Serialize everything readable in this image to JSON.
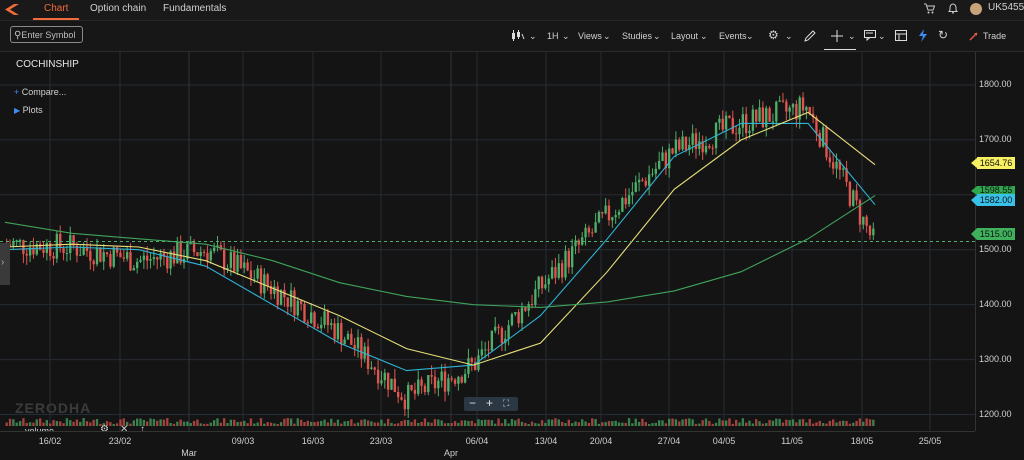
{
  "topbar": {
    "tabs": [
      {
        "label": "Chart"
      },
      {
        "label": "Option chain"
      },
      {
        "label": "Fundamentals"
      }
    ],
    "user_id": "UK5455"
  },
  "toolbar": {
    "search_placeholder": "Enter Symbol",
    "interval": "1H",
    "views": "Views",
    "studies": "Studies",
    "layout": "Layout",
    "events": "Events",
    "trade": "Trade"
  },
  "chart": {
    "symbol": "COCHINSHIP",
    "compare": "Compare...",
    "plots": "Plots",
    "watermark": "ZERODHA",
    "volume_label": "volume",
    "price_ticks": [
      "1800.00",
      "1700.00",
      "1600.00",
      "1500.00",
      "1400.00",
      "1300.00",
      "1200.00"
    ],
    "badges": {
      "ma_yellow": "1654.76",
      "ma_green": "1598.55",
      "ma_blue": "1582.00",
      "last": "1515.00"
    },
    "date_ticks": [
      "16/02",
      "23/02",
      "09/03",
      "16/03",
      "23/03",
      "06/04",
      "13/04",
      "20/04",
      "27/04",
      "04/05",
      "11/05",
      "18/05",
      "25/05"
    ],
    "month_ticks": [
      "Mar",
      "Apr"
    ]
  },
  "chart_data": {
    "type": "candlestick",
    "ylim": [
      1170,
      1860
    ],
    "x": [
      "16/02",
      "23/02",
      "02/03",
      "09/03",
      "16/03",
      "23/03",
      "30/03",
      "06/04",
      "13/04",
      "20/04",
      "27/04",
      "04/05",
      "11/05",
      "18/05"
    ],
    "close": [
      1510,
      1505,
      1480,
      1500,
      1430,
      1350,
      1230,
      1290,
      1430,
      1560,
      1680,
      1730,
      1760,
      1515
    ],
    "series": [
      {
        "name": "MA blue",
        "color": "#2fb3d6",
        "values": [
          1500,
          1505,
          1500,
          1470,
          1400,
          1330,
          1280,
          1290,
          1380,
          1520,
          1670,
          1730,
          1730,
          1582
        ]
      },
      {
        "name": "MA yellow",
        "color": "#e8e07a",
        "values": [
          1505,
          1510,
          1505,
          1480,
          1430,
          1380,
          1320,
          1290,
          1330,
          1460,
          1610,
          1700,
          1750,
          1654.76
        ]
      },
      {
        "name": "MA green",
        "color": "#3fa35b",
        "values": [
          1550,
          1530,
          1520,
          1510,
          1480,
          1440,
          1415,
          1400,
          1395,
          1405,
          1425,
          1460,
          1520,
          1598.55
        ]
      }
    ],
    "colors": {
      "up": "#4caf6a",
      "down": "#e2554f"
    }
  }
}
